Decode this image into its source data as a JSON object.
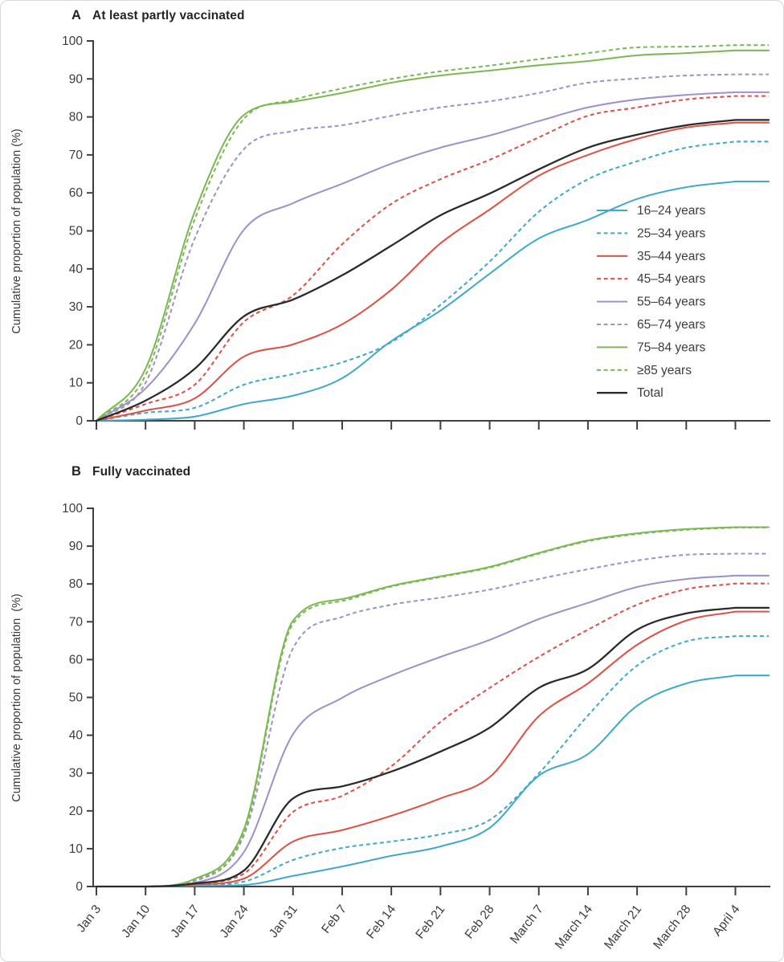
{
  "figure": {
    "panels": [
      {
        "id": "A",
        "letter": "A",
        "title": "At least partly vaccinated",
        "ylabel": "Cumulative proportion of population (%)"
      },
      {
        "id": "B",
        "letter": "B",
        "title": "Fully vaccinated",
        "ylabel": "Cumulative proportion of population  (%)"
      }
    ],
    "colors": {
      "blue": "#41a9c9",
      "red": "#de5246",
      "purple": "#a091cb",
      "green": "#7cb955",
      "black": "#2b2b2b",
      "axis": "#404040",
      "text": "#3c3c3c"
    }
  },
  "chart_data": [
    {
      "type": "line",
      "panel": "A",
      "title": "At least partly vaccinated",
      "xlabel": "",
      "ylabel": "Cumulative proportion of population (%)",
      "ylim": [
        0,
        100
      ],
      "ytick_step": 10,
      "grid": false,
      "x_tick_labels_shown": false,
      "legend_position": "inside-right",
      "categories": [
        "Jan 3",
        "Jan 10",
        "Jan 17",
        "Jan 24",
        "Jan 31",
        "Feb 7",
        "Feb 14",
        "Feb 21",
        "Feb 28",
        "March 7",
        "March 14",
        "March 21",
        "March 28",
        "April 4"
      ],
      "series": [
        {
          "name": "16–24 years",
          "color": "blue",
          "dash": "solid",
          "values": [
            0,
            0.3,
            1.1,
            4.4,
            6.6,
            11.2,
            21.0,
            29.0,
            38.7,
            48.0,
            52.9,
            58.4,
            61.5,
            63.0
          ]
        },
        {
          "name": "25–34 years",
          "color": "blue",
          "dash": "dashed",
          "values": [
            0,
            2.1,
            3.4,
            9.5,
            12.3,
            15.4,
            20.7,
            30.5,
            41.9,
            55.0,
            63.6,
            68.3,
            71.9,
            73.5
          ]
        },
        {
          "name": "35–44 years",
          "color": "red",
          "dash": "solid",
          "values": [
            0,
            2.7,
            5.9,
            16.9,
            20.1,
            25.4,
            34.5,
            46.7,
            55.6,
            64.5,
            70.0,
            74.2,
            77.2,
            78.5
          ]
        },
        {
          "name": "45–54 years",
          "color": "red",
          "dash": "dashed",
          "values": [
            0,
            4.4,
            9.5,
            26.0,
            33.0,
            46.5,
            57.1,
            63.6,
            68.7,
            74.6,
            80.3,
            82.5,
            84.6,
            85.5
          ]
        },
        {
          "name": "55–64 years",
          "color": "purple",
          "dash": "solid",
          "values": [
            0,
            8.5,
            25.6,
            50.3,
            57.3,
            62.4,
            67.7,
            71.9,
            75.1,
            78.9,
            82.5,
            84.6,
            85.8,
            86.5
          ]
        },
        {
          "name": "65–74 years",
          "color": "purple",
          "dash": "dashed",
          "values": [
            0,
            10.0,
            48.0,
            71.5,
            76.3,
            77.8,
            80.3,
            82.5,
            84.1,
            86.3,
            89.0,
            90.1,
            90.9,
            91.2
          ]
        },
        {
          "name": "75–84 years",
          "color": "green",
          "dash": "solid",
          "values": [
            0,
            13.7,
            55.0,
            80.5,
            84.0,
            86.3,
            89.0,
            90.9,
            92.2,
            93.6,
            94.7,
            96.2,
            96.8,
            97.5
          ]
        },
        {
          "name": "≥85 years",
          "color": "green",
          "dash": "dashed",
          "values": [
            0,
            12.0,
            53.0,
            79.5,
            84.5,
            87.5,
            90.0,
            92.0,
            93.5,
            95.2,
            96.8,
            98.3,
            98.5,
            98.9
          ]
        },
        {
          "name": "Total",
          "color": "black",
          "dash": "solid",
          "values": [
            0,
            5.3,
            13.7,
            27.5,
            31.9,
            38.3,
            46.1,
            54.1,
            59.8,
            66.2,
            71.9,
            75.3,
            77.8,
            79.2
          ]
        }
      ]
    },
    {
      "type": "line",
      "panel": "B",
      "title": "Fully vaccinated",
      "xlabel": "",
      "ylabel": "Cumulative proportion of population (%)",
      "ylim": [
        0,
        100
      ],
      "ytick_step": 10,
      "grid": false,
      "x_tick_labels_shown": true,
      "legend_position": "none",
      "categories": [
        "Jan 3",
        "Jan 10",
        "Jan 17",
        "Jan 24",
        "Jan 31",
        "Feb 7",
        "Feb 14",
        "Feb 21",
        "Feb 28",
        "March 7",
        "March 14",
        "March 21",
        "March 28",
        "April 4"
      ],
      "series": [
        {
          "name": "16–24 years",
          "color": "blue",
          "dash": "solid",
          "values": [
            0,
            0,
            0.2,
            0.4,
            2.8,
            5.3,
            8.1,
            10.6,
            15.5,
            29.3,
            35.0,
            47.8,
            53.7,
            55.8
          ]
        },
        {
          "name": "25–34 years",
          "color": "blue",
          "dash": "dashed",
          "values": [
            0,
            0,
            0.3,
            1.3,
            7.0,
            10.2,
            11.9,
            13.8,
            17.6,
            29.9,
            45.2,
            58.4,
            64.8,
            66.2
          ]
        },
        {
          "name": "35–44 years",
          "color": "red",
          "dash": "solid",
          "values": [
            0,
            0,
            0.5,
            2.1,
            11.9,
            14.9,
            18.7,
            23.3,
            28.9,
            45.0,
            53.7,
            63.9,
            70.3,
            72.7
          ]
        },
        {
          "name": "45–54 years",
          "color": "red",
          "dash": "dashed",
          "values": [
            0,
            0,
            0.8,
            3.4,
            19.7,
            24.0,
            31.8,
            43.5,
            52.5,
            60.7,
            67.9,
            74.5,
            78.6,
            80.1
          ]
        },
        {
          "name": "55–64 years",
          "color": "purple",
          "dash": "solid",
          "values": [
            0,
            0,
            1.0,
            9.1,
            40.3,
            49.9,
            55.8,
            60.7,
            65.2,
            70.7,
            75.0,
            79.2,
            81.3,
            82.2
          ]
        },
        {
          "name": "65–74 years",
          "color": "purple",
          "dash": "dashed",
          "values": [
            0,
            0,
            1.5,
            13.5,
            63.0,
            71.3,
            74.5,
            76.4,
            78.5,
            81.3,
            83.9,
            86.2,
            87.7,
            88.0
          ]
        },
        {
          "name": "75–84 years",
          "color": "green",
          "dash": "solid",
          "values": [
            0,
            0,
            2.0,
            15.1,
            70.3,
            76.0,
            79.5,
            82.0,
            84.5,
            88.2,
            91.5,
            93.4,
            94.5,
            95.0
          ]
        },
        {
          "name": "≥85 years",
          "color": "green",
          "dash": "dashed",
          "values": [
            0,
            0,
            1.8,
            14.2,
            69.5,
            75.5,
            79.3,
            81.8,
            84.3,
            88.0,
            91.3,
            93.2,
            94.3,
            94.9
          ]
        },
        {
          "name": "Total",
          "color": "black",
          "dash": "solid",
          "values": [
            0,
            0,
            0.8,
            4.2,
            23.3,
            26.5,
            30.4,
            35.7,
            42.0,
            52.5,
            57.5,
            67.9,
            72.2,
            73.7
          ]
        }
      ]
    }
  ]
}
